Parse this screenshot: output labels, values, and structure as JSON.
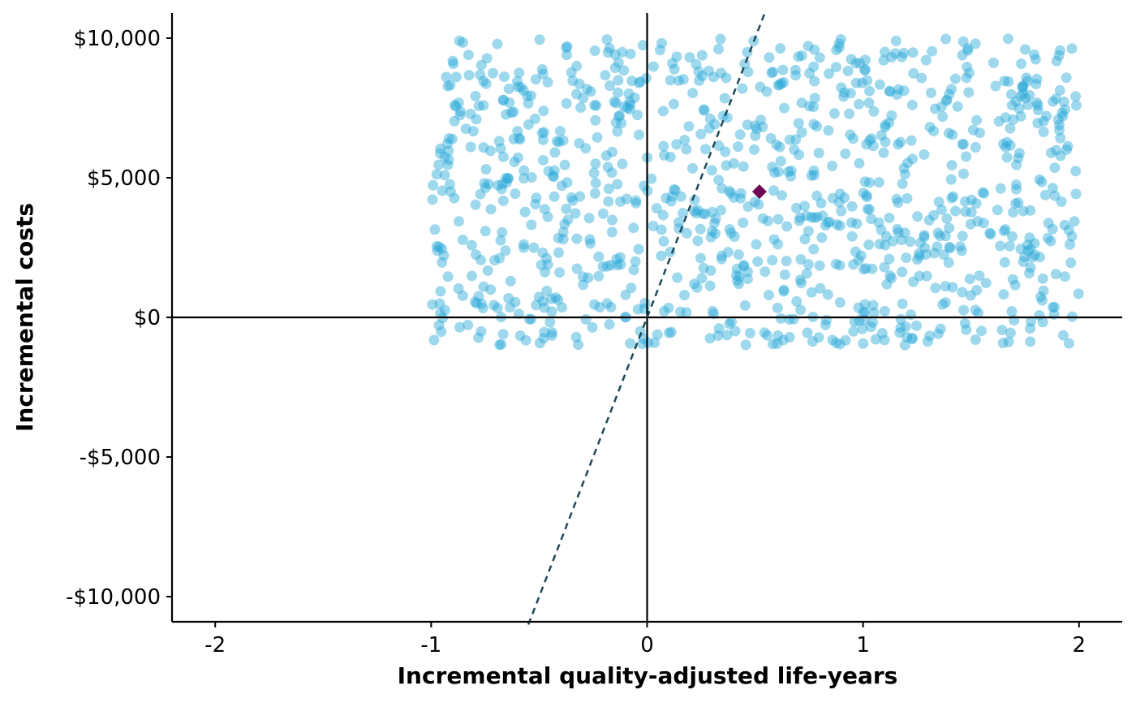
{
  "chart_data": {
    "type": "scatter",
    "title": "",
    "xlabel": "Incremental quality-adjusted life-years",
    "ylabel": "Incremental costs",
    "xlim": [
      -2.2,
      2.2
    ],
    "ylim": [
      -10900,
      10900
    ],
    "x_ticks": [
      -2,
      -1,
      0,
      1,
      2
    ],
    "x_tick_labels": [
      "-2",
      "-1",
      "0",
      "1",
      "2"
    ],
    "y_ticks": [
      10000,
      5000,
      0,
      -5000,
      -10000
    ],
    "y_tick_labels": [
      "$10,000",
      "$5,000",
      "$0",
      "-$5,000",
      "-$10,000"
    ],
    "grid": false,
    "legend": "none",
    "point_color": "#29A8D8",
    "mean_marker_color": "#6E0A56",
    "threshold_line_color": "#1C4A5A",
    "simulations": {
      "count": 1000,
      "x_range": [
        -1.0,
        2.0
      ],
      "y_range": [
        -1000,
        10000
      ]
    },
    "mean_point": {
      "x": 0.52,
      "y": 4500
    },
    "threshold_line": {
      "slope": 20000,
      "x_range": [
        -0.55,
        0.55
      ]
    }
  }
}
